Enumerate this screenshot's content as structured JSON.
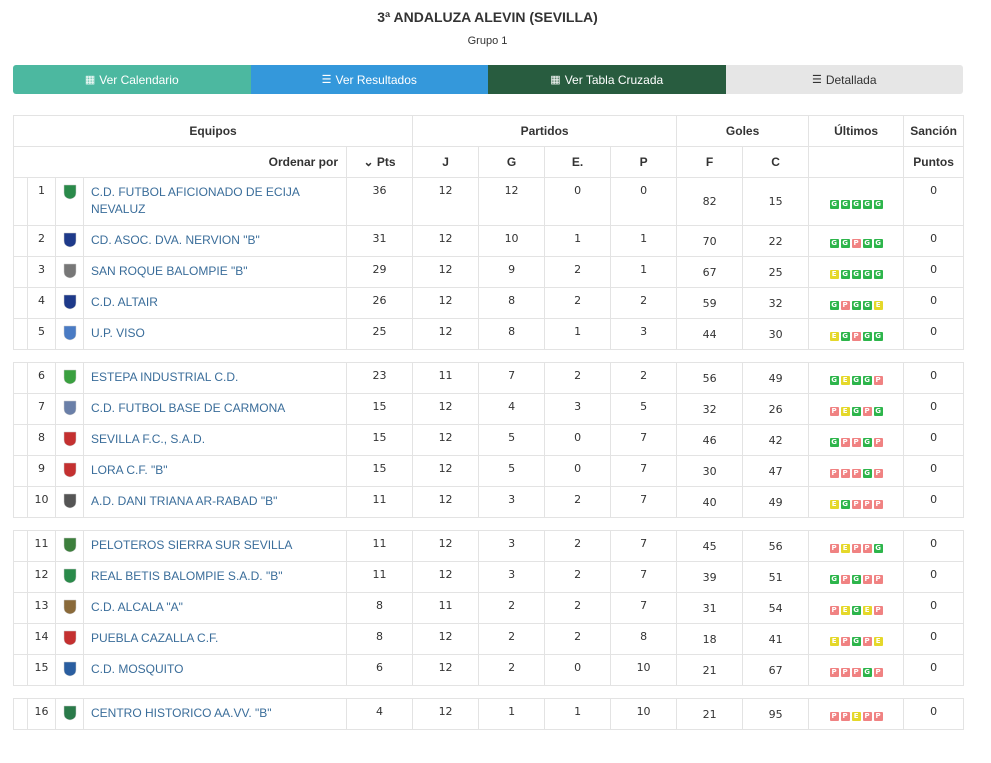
{
  "header": {
    "title": "3ª ANDALUZA ALEVIN (SEVILLA)",
    "subtitle": "Grupo 1"
  },
  "buttons": [
    {
      "label": "Ver Calendario",
      "icon": "calendar-icon"
    },
    {
      "label": "Ver Resultados",
      "icon": "list-icon"
    },
    {
      "label": "Ver Tabla Cruzada",
      "icon": "grid-icon"
    },
    {
      "label": "Detallada",
      "icon": "list-detail-icon"
    }
  ],
  "table": {
    "group_headers": {
      "equipos": "Equipos",
      "partidos": "Partidos",
      "goles": "Goles",
      "ultimos": "Últimos",
      "sancion": "Sanción"
    },
    "sub_headers": {
      "ordenar": "Ordenar por",
      "pts": "Pts",
      "j": "J",
      "g": "G",
      "e": "E.",
      "p": "P",
      "f": "F",
      "c": "C",
      "puntos": "Puntos"
    },
    "colors": {
      "G": "#2db54b",
      "E": "#e5d82a",
      "P": "#f08282"
    },
    "rows": [
      {
        "pos": "1",
        "team": "C.D. FUTBOL AFICIONADO DE ECIJA NEVALUZ",
        "pts": "36",
        "j": "12",
        "g": "12",
        "e": "0",
        "p": "0",
        "f": "82",
        "c": "15",
        "last": [
          "G",
          "G",
          "G",
          "G",
          "G"
        ],
        "sancion": "0",
        "tall": true
      },
      {
        "pos": "2",
        "team": "CD. ASOC. DVA. NERVION \"B\"",
        "pts": "31",
        "j": "12",
        "g": "10",
        "e": "1",
        "p": "1",
        "f": "70",
        "c": "22",
        "last": [
          "G",
          "G",
          "P",
          "G",
          "G"
        ],
        "sancion": "0"
      },
      {
        "pos": "3",
        "team": "SAN ROQUE BALOMPIE \"B\"",
        "pts": "29",
        "j": "12",
        "g": "9",
        "e": "2",
        "p": "1",
        "f": "67",
        "c": "25",
        "last": [
          "E",
          "G",
          "G",
          "G",
          "G"
        ],
        "sancion": "0"
      },
      {
        "pos": "4",
        "team": "C.D. ALTAIR",
        "pts": "26",
        "j": "12",
        "g": "8",
        "e": "2",
        "p": "2",
        "f": "59",
        "c": "32",
        "last": [
          "G",
          "P",
          "G",
          "G",
          "E"
        ],
        "sancion": "0"
      },
      {
        "pos": "5",
        "team": "U.P. VISO",
        "pts": "25",
        "j": "12",
        "g": "8",
        "e": "1",
        "p": "3",
        "f": "44",
        "c": "30",
        "last": [
          "E",
          "G",
          "P",
          "G",
          "G"
        ],
        "sancion": "0"
      },
      {
        "gap": true
      },
      {
        "pos": "6",
        "team": "ESTEPA INDUSTRIAL C.D.",
        "pts": "23",
        "j": "11",
        "g": "7",
        "e": "2",
        "p": "2",
        "f": "56",
        "c": "49",
        "last": [
          "G",
          "E",
          "G",
          "G",
          "P"
        ],
        "sancion": "0"
      },
      {
        "pos": "7",
        "team": "C.D. FUTBOL BASE DE CARMONA",
        "pts": "15",
        "j": "12",
        "g": "4",
        "e": "3",
        "p": "5",
        "f": "32",
        "c": "26",
        "last": [
          "P",
          "E",
          "G",
          "P",
          "G"
        ],
        "sancion": "0"
      },
      {
        "pos": "8",
        "team": "SEVILLA F.C., S.A.D.",
        "pts": "15",
        "j": "12",
        "g": "5",
        "e": "0",
        "p": "7",
        "f": "46",
        "c": "42",
        "last": [
          "G",
          "P",
          "P",
          "G",
          "P"
        ],
        "sancion": "0"
      },
      {
        "pos": "9",
        "team": "LORA C.F. \"B\"",
        "pts": "15",
        "j": "12",
        "g": "5",
        "e": "0",
        "p": "7",
        "f": "30",
        "c": "47",
        "last": [
          "P",
          "P",
          "P",
          "G",
          "P"
        ],
        "sancion": "0"
      },
      {
        "pos": "10",
        "team": "A.D. DANI TRIANA AR-RABAD \"B\"",
        "pts": "11",
        "j": "12",
        "g": "3",
        "e": "2",
        "p": "7",
        "f": "40",
        "c": "49",
        "last": [
          "E",
          "G",
          "P",
          "P",
          "P"
        ],
        "sancion": "0"
      },
      {
        "gap": true
      },
      {
        "pos": "11",
        "team": "PELOTEROS SIERRA SUR SEVILLA",
        "pts": "11",
        "j": "12",
        "g": "3",
        "e": "2",
        "p": "7",
        "f": "45",
        "c": "56",
        "last": [
          "P",
          "E",
          "P",
          "P",
          "G"
        ],
        "sancion": "0"
      },
      {
        "pos": "12",
        "team": "REAL BETIS BALOMPIE S.A.D. \"B\"",
        "pts": "11",
        "j": "12",
        "g": "3",
        "e": "2",
        "p": "7",
        "f": "39",
        "c": "51",
        "last": [
          "G",
          "P",
          "G",
          "P",
          "P"
        ],
        "sancion": "0"
      },
      {
        "pos": "13",
        "team": "C.D. ALCALA \"A\"",
        "pts": "8",
        "j": "11",
        "g": "2",
        "e": "2",
        "p": "7",
        "f": "31",
        "c": "54",
        "last": [
          "P",
          "E",
          "G",
          "E",
          "P"
        ],
        "sancion": "0"
      },
      {
        "pos": "14",
        "team": "PUEBLA CAZALLA C.F.",
        "pts": "8",
        "j": "12",
        "g": "2",
        "e": "2",
        "p": "8",
        "f": "18",
        "c": "41",
        "last": [
          "E",
          "P",
          "G",
          "P",
          "E"
        ],
        "sancion": "0"
      },
      {
        "pos": "15",
        "team": "C.D. MOSQUITO",
        "pts": "6",
        "j": "12",
        "g": "2",
        "e": "0",
        "p": "10",
        "f": "21",
        "c": "67",
        "last": [
          "P",
          "P",
          "P",
          "G",
          "P"
        ],
        "sancion": "0"
      },
      {
        "gap": true
      },
      {
        "pos": "16",
        "team": "CENTRO HISTORICO AA.VV. \"B\"",
        "pts": "4",
        "j": "12",
        "g": "1",
        "e": "1",
        "p": "10",
        "f": "21",
        "c": "95",
        "last": [
          "P",
          "P",
          "E",
          "P",
          "P"
        ],
        "sancion": "0"
      }
    ]
  }
}
